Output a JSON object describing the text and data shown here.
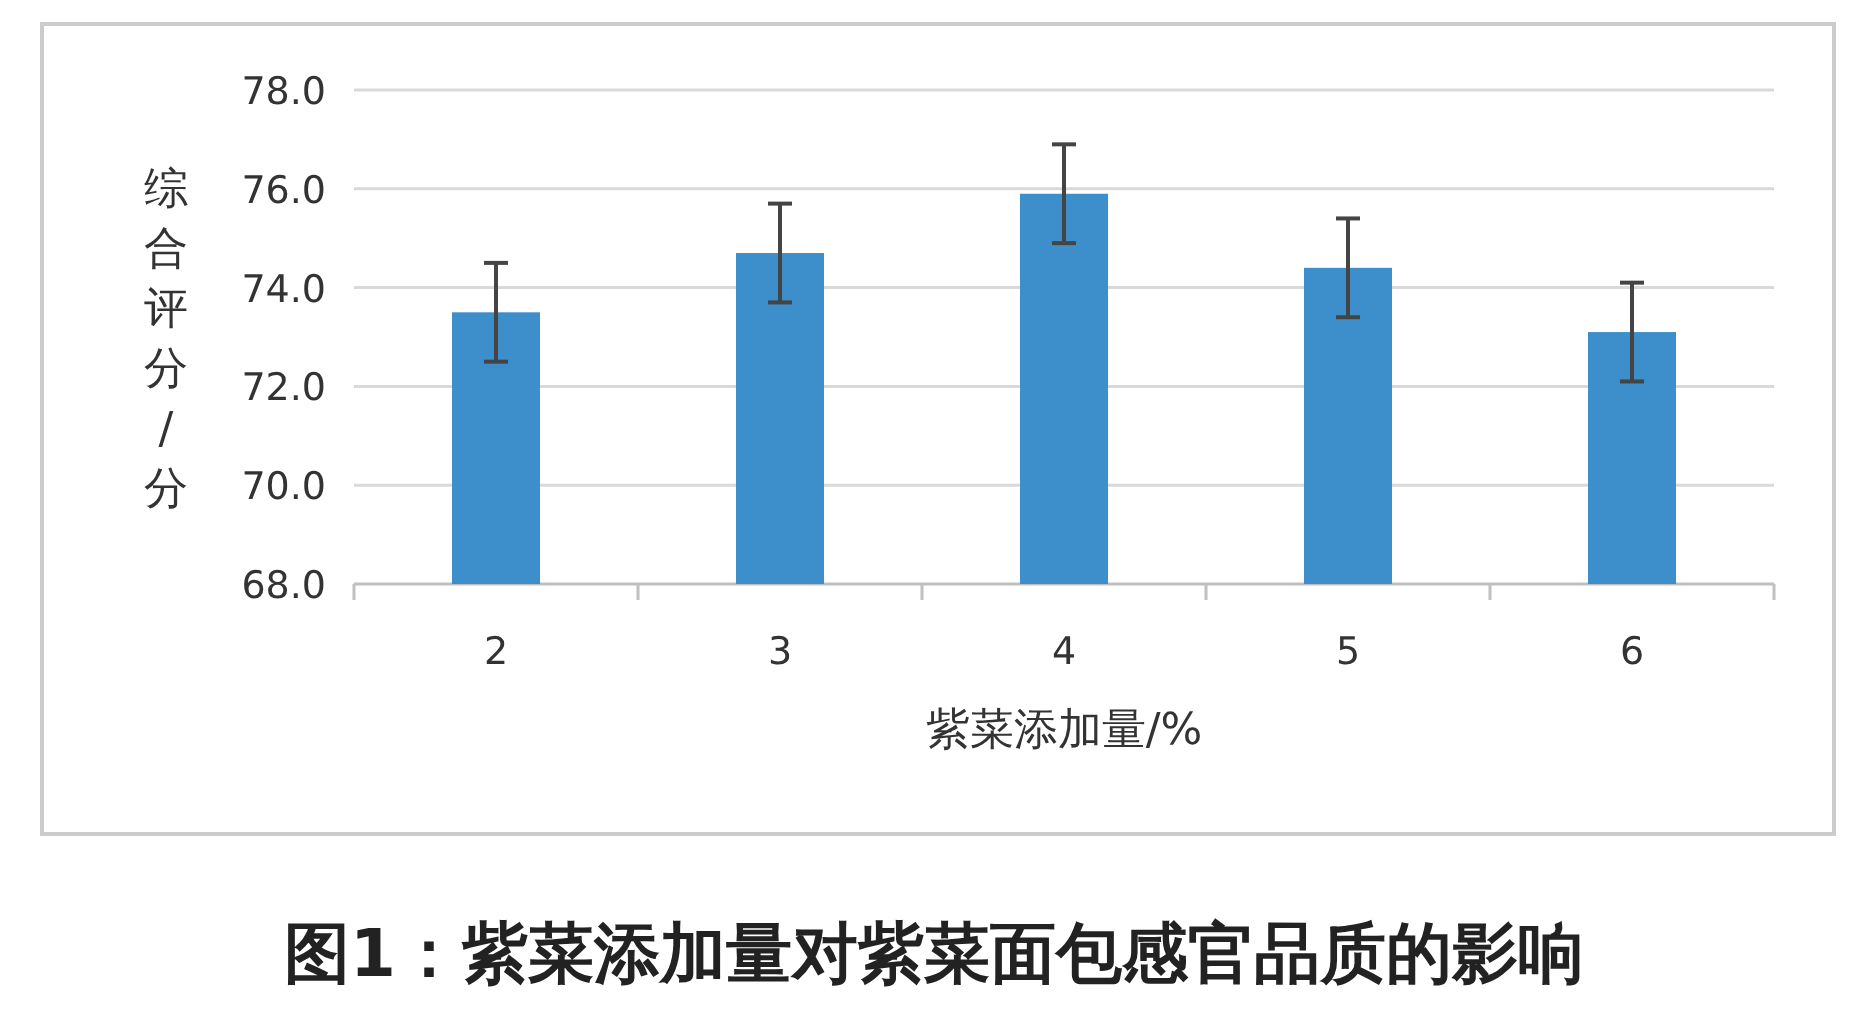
{
  "chart_data": {
    "type": "bar",
    "title": "图1：紫菜添加量对紫菜面包感官品质的影响",
    "xlabel": "紫菜添加量/%",
    "ylabel": "综合评分/分",
    "categories": [
      "2",
      "3",
      "4",
      "5",
      "6"
    ],
    "values": [
      73.5,
      74.7,
      75.9,
      74.4,
      73.1
    ],
    "errors": [
      1.0,
      1.0,
      1.0,
      1.0,
      1.0
    ],
    "color": "#3d8fcc",
    "ylim": [
      68,
      78
    ],
    "yticks": [
      {
        "value": 68,
        "label": "68.0"
      },
      {
        "value": 70,
        "label": "70.0"
      },
      {
        "value": 72,
        "label": "72.0"
      },
      {
        "value": 74,
        "label": "74.0"
      },
      {
        "value": 76,
        "label": "76.0"
      },
      {
        "value": 78,
        "label": "78.0"
      }
    ],
    "grid": "y"
  }
}
